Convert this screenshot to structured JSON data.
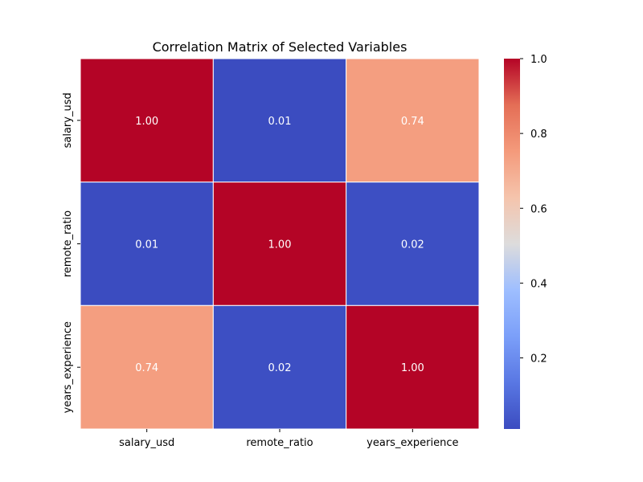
{
  "chart_data": {
    "type": "heatmap",
    "title": "Correlation Matrix of Selected Variables",
    "rows": [
      "salary_usd",
      "remote_ratio",
      "years_experience"
    ],
    "columns": [
      "salary_usd",
      "remote_ratio",
      "years_experience"
    ],
    "values": [
      [
        1.0,
        0.01,
        0.74
      ],
      [
        0.01,
        1.0,
        0.02
      ],
      [
        0.74,
        0.02,
        1.0
      ]
    ],
    "colormap": "coolwarm",
    "color_range": [
      0.01,
      1.0
    ],
    "colorbar_ticks": [
      "0.2",
      "0.4",
      "0.6",
      "0.8",
      "1.0"
    ],
    "annotation_format": "2 decimals"
  }
}
